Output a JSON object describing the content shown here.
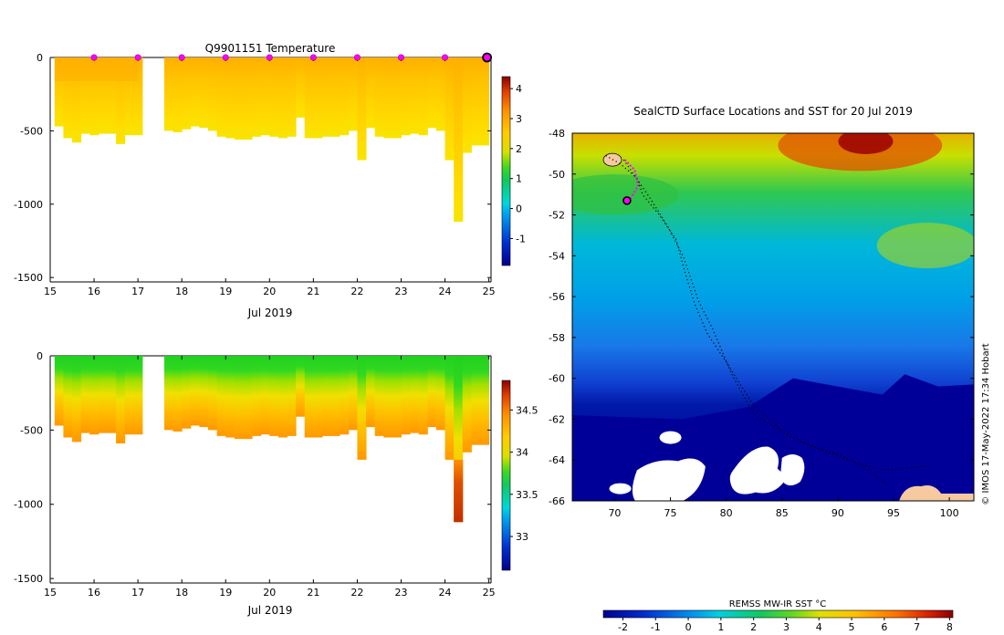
{
  "chart_data": [
    {
      "type": "heatmap",
      "id": "temperature",
      "title": "Q9901151  Temperature",
      "xlabel": "Jul 2019",
      "x_ticks": [
        "15",
        "16",
        "17",
        "18",
        "19",
        "20",
        "21",
        "22",
        "23",
        "24",
        "25"
      ],
      "xlim": [
        15,
        25.05
      ],
      "y_ticks": [
        "0",
        "-500",
        "-1000",
        "-1500"
      ],
      "ylim": [
        -1530,
        0
      ],
      "colorbar": {
        "min": -1.9,
        "max": 4.4,
        "ticks": [
          "-1",
          "0",
          "1",
          "2",
          "3",
          "4"
        ]
      },
      "profiles_depth": [
        [
          15.1,
          -470
        ],
        [
          15.3,
          -550
        ],
        [
          15.5,
          -580
        ],
        [
          15.7,
          -520
        ],
        [
          15.9,
          -530
        ],
        [
          16.1,
          -520
        ],
        [
          16.3,
          -520
        ],
        [
          16.5,
          -590
        ],
        [
          16.7,
          -530
        ],
        [
          16.9,
          -530
        ],
        [
          17.6,
          -500
        ],
        [
          17.8,
          -510
        ],
        [
          18.0,
          -490
        ],
        [
          18.2,
          -470
        ],
        [
          18.4,
          -480
        ],
        [
          18.6,
          -500
        ],
        [
          18.8,
          -540
        ],
        [
          19.0,
          -550
        ],
        [
          19.2,
          -560
        ],
        [
          19.4,
          -560
        ],
        [
          19.6,
          -540
        ],
        [
          19.8,
          -530
        ],
        [
          20.0,
          -540
        ],
        [
          20.2,
          -550
        ],
        [
          20.4,
          -540
        ],
        [
          20.6,
          -410
        ],
        [
          20.8,
          -550
        ],
        [
          21.0,
          -550
        ],
        [
          21.2,
          -540
        ],
        [
          21.4,
          -540
        ],
        [
          21.6,
          -530
        ],
        [
          21.8,
          -500
        ],
        [
          22.0,
          -700
        ],
        [
          22.2,
          -480
        ],
        [
          22.4,
          -540
        ],
        [
          22.6,
          -550
        ],
        [
          22.8,
          -550
        ],
        [
          23.0,
          -530
        ],
        [
          23.2,
          -520
        ],
        [
          23.4,
          -530
        ],
        [
          23.6,
          -480
        ],
        [
          23.8,
          -500
        ],
        [
          24.0,
          -700
        ],
        [
          24.2,
          -1120
        ],
        [
          24.4,
          -650
        ],
        [
          24.6,
          -600
        ],
        [
          24.8,
          -600
        ]
      ],
      "markers_day": [
        16,
        17,
        18,
        19,
        20,
        21,
        22,
        23,
        24
      ],
      "current_day": 25
    },
    {
      "type": "heatmap",
      "id": "salinity",
      "xlabel": "Jul 2019",
      "x_ticks": [
        "15",
        "16",
        "17",
        "18",
        "19",
        "20",
        "21",
        "22",
        "23",
        "24",
        "25"
      ],
      "xlim": [
        15,
        25.05
      ],
      "y_ticks": [
        "0",
        "-500",
        "-1000",
        "-1500"
      ],
      "ylim": [
        -1530,
        0
      ],
      "colorbar": {
        "min": 32.6,
        "max": 34.85,
        "ticks": [
          "33",
          "33.5",
          "34",
          "34.5"
        ]
      }
    },
    {
      "type": "heatmap",
      "id": "map",
      "title": "SealCTD Surface Locations and SST for 20 Jul 2019",
      "x_ticks": [
        "70",
        "75",
        "80",
        "85",
        "90",
        "95",
        "100"
      ],
      "xlim": [
        66.2,
        102.2
      ],
      "y_ticks": [
        "-48",
        "-50",
        "-52",
        "-54",
        "-56",
        "-58",
        "-60",
        "-62",
        "-64",
        "-66"
      ],
      "ylim": [
        -66,
        -48
      ],
      "colorbar": {
        "label": "REMSS MW-IR SST °C",
        "min": -2.6,
        "max": 8.1,
        "ticks": [
          "-2",
          "-1",
          "0",
          "1",
          "2",
          "3",
          "4",
          "5",
          "6",
          "7",
          "8"
        ]
      },
      "credit": "© IMOS 17-May-2022 17:34 Hobart"
    }
  ],
  "colors": {
    "background": "#ffffff",
    "land": "#f6c9a0",
    "ice": "#ffffff",
    "marker": "#ff00ff",
    "track": "#000000"
  }
}
